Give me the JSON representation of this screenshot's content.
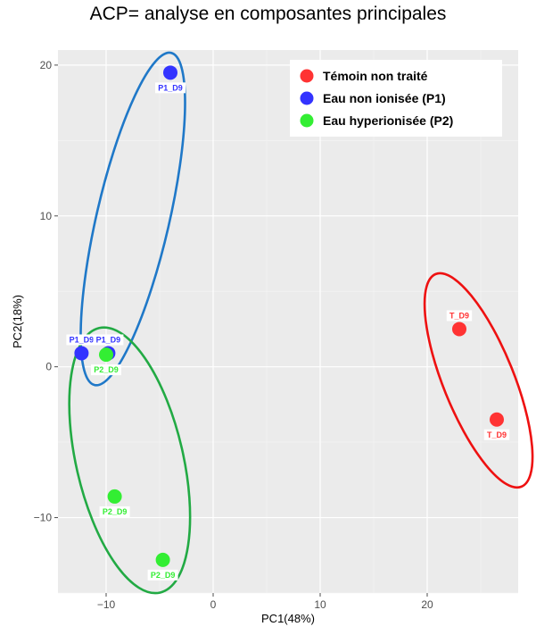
{
  "chart_data": {
    "type": "scatter",
    "title": "ACP= analyse en composantes principales",
    "xlabel": "PC1(48%)",
    "ylabel": "PC2(18%)",
    "xlim": [
      -14.5,
      28.5
    ],
    "ylim": [
      -15,
      21
    ],
    "xticks": [
      -10,
      0,
      10,
      20
    ],
    "yticks": [
      -10,
      0,
      10,
      20
    ],
    "grid": true,
    "legend_position": "top-right",
    "series": [
      {
        "name": "Témoin non traité",
        "color": "#ff3333",
        "points": [
          {
            "x": 23,
            "y": 2.5,
            "label": "T_D9",
            "label_pos": "above"
          },
          {
            "x": 26.5,
            "y": -3.5,
            "label": "T_D9",
            "label_pos": "below"
          }
        ]
      },
      {
        "name": "Eau non ionisée (P1)",
        "color": "#3333ff",
        "points": [
          {
            "x": -4,
            "y": 19.5,
            "label": "P1_D9",
            "label_pos": "below"
          },
          {
            "x": -12.3,
            "y": 0.9,
            "label": "P1_D9",
            "label_pos": "above"
          },
          {
            "x": -9.8,
            "y": 0.9,
            "label": "P1_D9",
            "label_pos": "above"
          }
        ]
      },
      {
        "name": "Eau hyperionisée (P2)",
        "color": "#33ee33",
        "points": [
          {
            "x": -10,
            "y": 0.8,
            "label": "P2_D9",
            "label_pos": "below"
          },
          {
            "x": -9.2,
            "y": -8.6,
            "label": "P2_D9",
            "label_pos": "below"
          },
          {
            "x": -4.7,
            "y": -12.8,
            "label": "P2_D9",
            "label_pos": "below"
          }
        ]
      }
    ],
    "ellipses": [
      {
        "group": "Témoin non traité",
        "stroke": "#ee1111",
        "cx": 24.8,
        "cy": -0.9,
        "rx": 3.3,
        "ry": 7.6,
        "angle": -22
      },
      {
        "group": "Eau non ionisée (P1)",
        "stroke": "#1f78c8",
        "cx": -7.5,
        "cy": 9.8,
        "rx": 3.4,
        "ry": 11.3,
        "angle": 13
      },
      {
        "group": "Eau hyperionisée (P2)",
        "stroke": "#22aa44",
        "cx": -7.8,
        "cy": -6.2,
        "rx": 5.0,
        "ry": 9.0,
        "angle": -13
      }
    ]
  }
}
